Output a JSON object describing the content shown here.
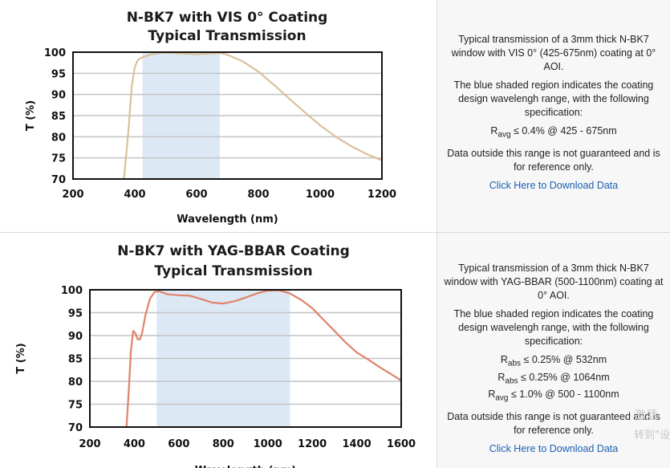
{
  "charts": [
    {
      "title_line1": "N-BK7 with VIS 0° Coating",
      "title_line2": "Typical Transmission",
      "desc_p1": "Typical transmission of a 3mm thick N-BK7 window with VIS 0° (425-675nm) coating at 0° AOI.",
      "desc_p2": "The blue shaded region indicates the coating design wavelengh range, with the following specification:",
      "specs": [
        {
          "sym": "R",
          "sub": "avg",
          "text": " ≤ 0.4% @ 425 - 675nm"
        }
      ],
      "desc_p3": "Data outside this range is not guaranteed and is for reference only.",
      "link_label": "Click Here to Download Data"
    },
    {
      "title_line1": "N-BK7 with YAG-BBAR Coating",
      "title_line2": "Typical Transmission",
      "desc_p1": "Typical transmission of a 3mm thick N-BK7 window with YAG-BBAR (500-1100nm) coating at 0° AOI.",
      "desc_p2": "The blue shaded region indicates the coating design wavelengh range, with the following specification:",
      "specs": [
        {
          "sym": "R",
          "sub": "abs",
          "text": " ≤ 0.25% @ 532nm"
        },
        {
          "sym": "R",
          "sub": "abs",
          "text": " ≤ 0.25% @ 1064nm"
        },
        {
          "sym": "R",
          "sub": "avg",
          "text": " ≤ 1.0% @ 500 - 1100nm"
        }
      ],
      "desc_p3": "Data outside this range is not guaranteed and is for reference only.",
      "link_label": "Click Here to Download Data"
    }
  ],
  "watermark": {
    "line1": "激活",
    "line2": "转到\"设"
  },
  "chart_data": [
    {
      "type": "line",
      "title": "N-BK7 with VIS 0° Coating Typical Transmission",
      "xlabel": "Wavelength (nm)",
      "ylabel": "T (%)",
      "xlim": [
        200,
        1200
      ],
      "ylim": [
        70,
        100
      ],
      "xticks": [
        200,
        400,
        600,
        800,
        1000,
        1200
      ],
      "yticks": [
        70,
        75,
        80,
        85,
        90,
        95,
        100
      ],
      "grid": true,
      "shaded_band": [
        425,
        675
      ],
      "line_color": "#d9c29a",
      "band_color": "#dce9f5",
      "series": [
        {
          "x": [
            365,
            380,
            390,
            400,
            410,
            425,
            450,
            480,
            500,
            550,
            600,
            650,
            675,
            700,
            750,
            800,
            850,
            900,
            950,
            1000,
            1050,
            1100,
            1150,
            1200
          ],
          "y": [
            70,
            82,
            92,
            96.5,
            98.2,
            98.8,
            99.4,
            99.8,
            99.9,
            99.7,
            99.5,
            99.7,
            99.8,
            99.4,
            97.8,
            95.4,
            92.3,
            89.0,
            85.8,
            82.7,
            80.0,
            77.8,
            75.9,
            74.4
          ]
        }
      ]
    },
    {
      "type": "line",
      "title": "N-BK7 with YAG-BBAR Coating Typical Transmission",
      "xlabel": "Wavelength (nm)",
      "ylabel": "T (%)",
      "xlim": [
        200,
        1600
      ],
      "ylim": [
        70,
        100
      ],
      "xticks": [
        200,
        400,
        600,
        800,
        1000,
        1200,
        1400,
        1600
      ],
      "yticks": [
        70,
        75,
        80,
        85,
        90,
        95,
        100
      ],
      "grid": true,
      "shaded_band": [
        500,
        1100
      ],
      "line_color": "#e0826a",
      "band_color": "#dce9f5",
      "series": [
        {
          "x": [
            365,
            375,
            385,
            395,
            405,
            415,
            425,
            435,
            450,
            470,
            490,
            510,
            550,
            600,
            650,
            700,
            750,
            800,
            850,
            900,
            950,
            1000,
            1050,
            1100,
            1150,
            1200,
            1250,
            1300,
            1350,
            1400,
            1450,
            1500,
            1550,
            1600
          ],
          "y": [
            70,
            78,
            87,
            91,
            90.5,
            89.2,
            89.2,
            90.5,
            94.5,
            98.0,
            99.5,
            99.7,
            99.0,
            98.8,
            98.7,
            98.0,
            97.2,
            97.0,
            97.5,
            98.3,
            99.2,
            99.8,
            99.9,
            99.2,
            97.8,
            96.0,
            93.5,
            91.0,
            88.5,
            86.3,
            84.8,
            83.2,
            81.7,
            80.2
          ]
        }
      ]
    }
  ]
}
